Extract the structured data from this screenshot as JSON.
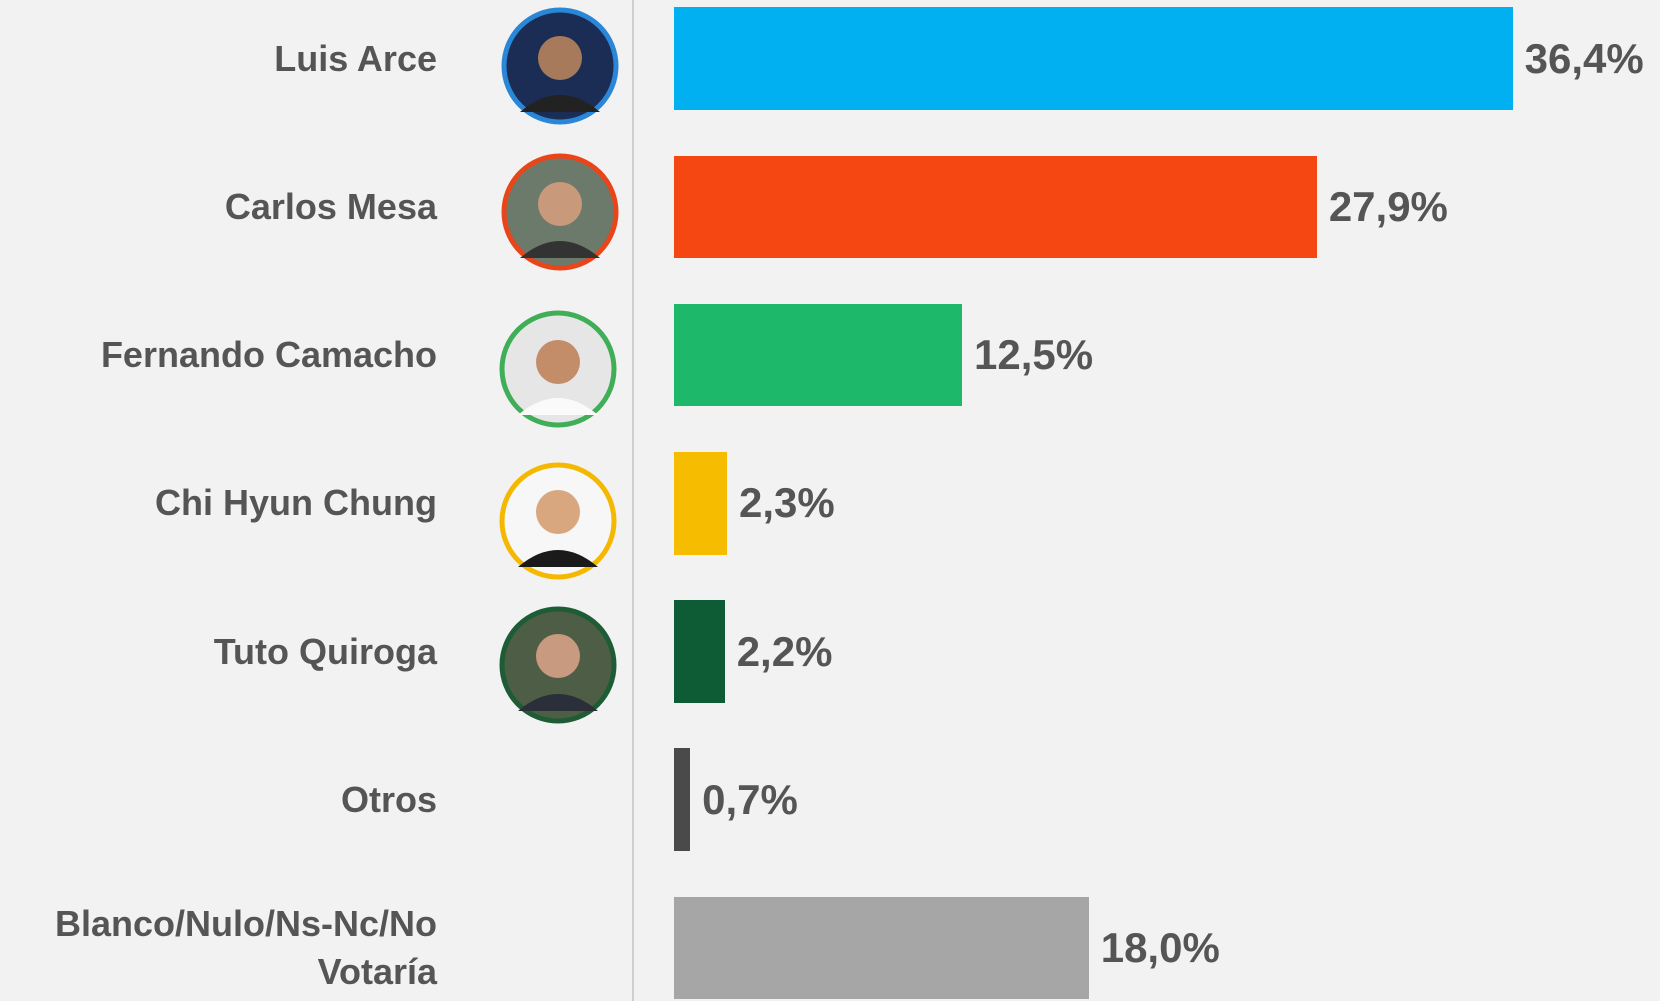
{
  "chart_data": {
    "type": "bar",
    "orientation": "horizontal",
    "categories": [
      "Luis Arce",
      "Carlos Mesa",
      "Fernando Camacho",
      "Chi Hyun Chung",
      "Tuto Quiroga",
      "Otros",
      "Blanco/Nulo/Ns-Nc/No Votaría"
    ],
    "values": [
      36.4,
      27.9,
      12.5,
      2.3,
      2.2,
      0.7,
      18.0
    ],
    "value_labels": [
      "36,4%",
      "27,9%",
      "12,5%",
      "2,3%",
      "2,2%",
      "0,7%",
      "18,0%"
    ],
    "colors": [
      "#00b0f0",
      "#f44712",
      "#1eb86a",
      "#f6bd00",
      "#0d5c36",
      "#4a4a4a",
      "#a6a6a6"
    ]
  }
}
